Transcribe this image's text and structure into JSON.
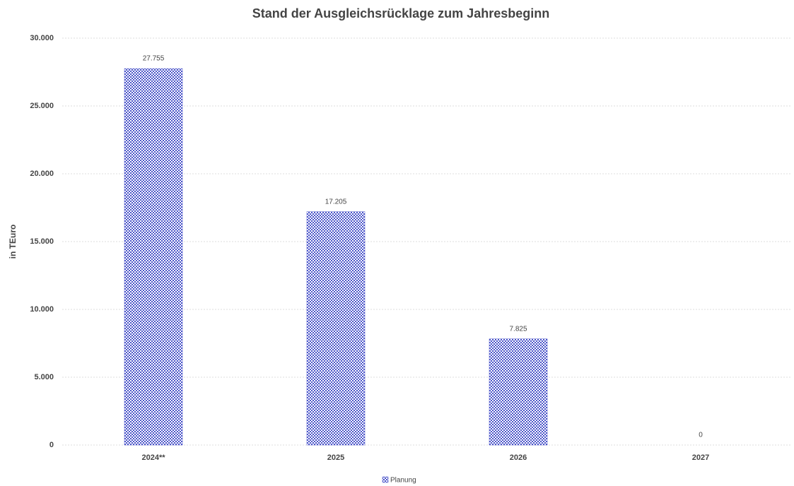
{
  "chart_data": {
    "type": "bar",
    "title": "Stand der Ausgleichsrücklage zum Jahresbeginn",
    "y_label": "in TEuro",
    "categories": [
      "2024**",
      "2025",
      "2026",
      "2027"
    ],
    "series": [
      {
        "name": "Planung",
        "color": "#4b55c9",
        "values": [
          27755,
          17205,
          7825,
          0
        ],
        "value_labels": [
          "27.755",
          "17.205",
          "7.825",
          "0"
        ]
      }
    ],
    "ylim": [
      0,
      30000
    ],
    "yticks": [
      0,
      {
        "value": 5000,
        "label": "5.000"
      },
      {
        "value": 10000,
        "label": "10.000"
      },
      {
        "value": 15000,
        "label": "15.000"
      },
      {
        "value": 20000,
        "label": "20.000"
      },
      {
        "value": 25000,
        "label": "25.000"
      },
      {
        "value": 30000,
        "label": "30.000"
      }
    ],
    "grid": true,
    "legend": "bottom"
  }
}
